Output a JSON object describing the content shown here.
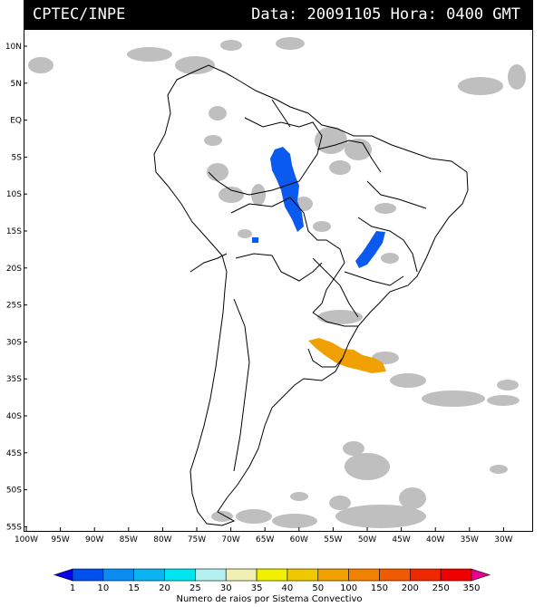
{
  "header": {
    "source": "CPTEC/INPE",
    "data_label": "Data:",
    "date": "20091105",
    "hora_label": "Hora:",
    "time": "0400 GMT"
  },
  "lat_labels": [
    "10N",
    "5N",
    "EQ",
    "5S",
    "10S",
    "15S",
    "20S",
    "25S",
    "30S",
    "35S",
    "40S",
    "45S",
    "50S",
    "55S"
  ],
  "lon_labels": [
    "100W",
    "95W",
    "90W",
    "85W",
    "80W",
    "75W",
    "70W",
    "65W",
    "60W",
    "55W",
    "50W",
    "45W",
    "40W",
    "35W",
    "30W"
  ],
  "legend": {
    "values": [
      "1",
      "10",
      "15",
      "20",
      "25",
      "30",
      "35",
      "40",
      "50",
      "100",
      "150",
      "200",
      "250",
      "350"
    ],
    "colors": [
      "#0a00e6",
      "#0050f0",
      "#0a8cf0",
      "#0ab4f0",
      "#00e6f0",
      "#b4f0f0",
      "#f0f0b4",
      "#f0f000",
      "#f0c800",
      "#f0a000",
      "#f08200",
      "#f05a00",
      "#f02800",
      "#f00000",
      "#e6008c"
    ],
    "caption": "Numero de raios por Sistema Convectivo"
  }
}
